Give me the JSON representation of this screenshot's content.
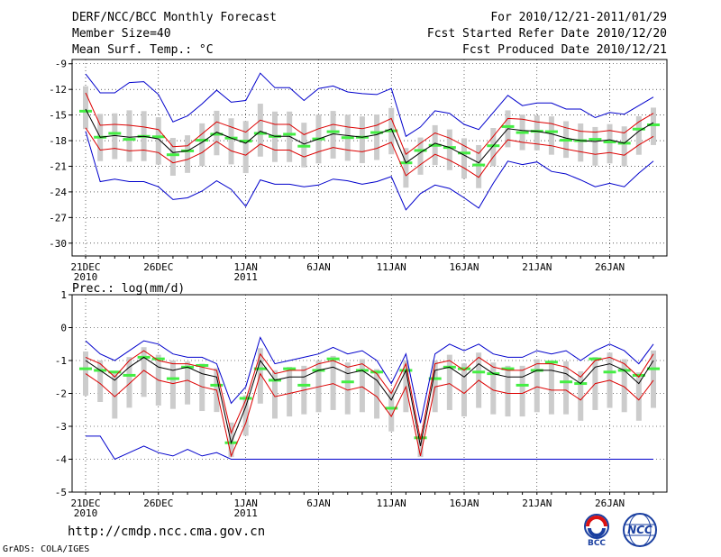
{
  "header": {
    "title": "DERF/NCC/BCC Monthly Forecast",
    "member": "Member Size=40",
    "variable": "Mean Surf. Temp.: °C",
    "period": "For 2010/12/21-2011/01/29",
    "started": "Fcst Started Refer Date 2010/12/20",
    "produced": "Fcst Produced Date 2010/12/21"
  },
  "footer": {
    "url": "http://cmdp.ncc.cma.gov.cn",
    "grads": "GrADS: COLA/IGES",
    "logo_left": "BCC",
    "logo_right": "NCC"
  },
  "chart_data": [
    {
      "type": "line",
      "title": "Mean Surf. Temp.: °C",
      "ylim": [
        -31.5,
        -8.5
      ],
      "yticks": [
        -9,
        -12,
        -15,
        -18,
        -21,
        -24,
        -27,
        -30
      ],
      "ytick_labels": [
        "-9",
        "-12",
        "-15",
        "-18",
        "-21",
        "-24",
        "-27",
        "-30"
      ],
      "xticks": [
        {
          "day": 1,
          "label": "21DEC",
          "sub": "2010"
        },
        {
          "day": 6,
          "label": "26DEC",
          "sub": ""
        },
        {
          "day": 12,
          "label": "1JAN",
          "sub": "2011"
        },
        {
          "day": 17,
          "label": "6JAN",
          "sub": ""
        },
        {
          "day": 22,
          "label": "11JAN",
          "sub": ""
        },
        {
          "day": 27,
          "label": "16JAN",
          "sub": ""
        },
        {
          "day": 32,
          "label": "21JAN",
          "sub": ""
        },
        {
          "day": 37,
          "label": "26JAN",
          "sub": ""
        }
      ],
      "days": 40,
      "series": [
        {
          "name": "max",
          "color": "#0000cc",
          "values": [
            -10.2,
            -12.4,
            -12.4,
            -11.2,
            -11.1,
            -12.6,
            -15.8,
            -15.1,
            -13.7,
            -12.1,
            -13.5,
            -13.3,
            -10.1,
            -11.8,
            -11.8,
            -13.3,
            -11.9,
            -11.6,
            -12.3,
            -12.5,
            -12.6,
            -11.9,
            -17.5,
            -16.4,
            -14.5,
            -14.8,
            -16.1,
            -16.7,
            -14.7,
            -12.7,
            -13.9,
            -13.6,
            -13.6,
            -14.3,
            -14.3,
            -15.3,
            -14.7,
            -14.9,
            -13.9,
            -12.9
          ]
        },
        {
          "name": "upper",
          "color": "#dd0000",
          "values": [
            -12.4,
            -16.2,
            -16.1,
            -16.2,
            -16.4,
            -16.7,
            -18.7,
            -18.6,
            -17.2,
            -15.8,
            -16.4,
            -17.0,
            -15.6,
            -16.1,
            -16.1,
            -17.3,
            -16.6,
            -16.1,
            -16.4,
            -16.6,
            -16.2,
            -15.4,
            -19.6,
            -18.3,
            -17.1,
            -17.7,
            -18.6,
            -19.5,
            -17.5,
            -15.4,
            -15.5,
            -15.8,
            -16.0,
            -16.5,
            -16.9,
            -17.0,
            -16.8,
            -17.1,
            -15.8,
            -14.8
          ]
        },
        {
          "name": "mean",
          "color": "#000000",
          "values": [
            -14.3,
            -17.6,
            -17.4,
            -17.6,
            -17.5,
            -17.8,
            -19.4,
            -19.2,
            -18.2,
            -17.0,
            -17.7,
            -18.3,
            -16.9,
            -17.5,
            -17.5,
            -18.4,
            -17.8,
            -17.2,
            -17.4,
            -17.6,
            -17.3,
            -16.6,
            -20.6,
            -19.4,
            -18.3,
            -18.8,
            -19.7,
            -20.6,
            -18.6,
            -16.6,
            -16.8,
            -16.9,
            -17.2,
            -17.7,
            -18.0,
            -18.1,
            -17.9,
            -18.3,
            -16.9,
            -15.9
          ]
        },
        {
          "name": "lower",
          "color": "#dd0000",
          "values": [
            -16.5,
            -19.1,
            -18.9,
            -19.2,
            -19.1,
            -19.4,
            -20.6,
            -20.2,
            -19.4,
            -18.1,
            -19.2,
            -19.7,
            -18.4,
            -19.1,
            -19.1,
            -19.9,
            -19.3,
            -18.8,
            -19.1,
            -19.3,
            -18.9,
            -18.2,
            -22.1,
            -20.8,
            -19.6,
            -20.3,
            -21.2,
            -22.3,
            -19.9,
            -17.9,
            -18.2,
            -18.4,
            -18.6,
            -19.0,
            -19.3,
            -19.6,
            -19.4,
            -19.7,
            -18.5,
            -17.5
          ]
        },
        {
          "name": "min",
          "color": "#0000cc",
          "values": [
            -16.9,
            -22.8,
            -22.5,
            -22.8,
            -22.8,
            -23.4,
            -24.9,
            -24.7,
            -23.9,
            -22.7,
            -23.7,
            -25.7,
            -22.6,
            -23.1,
            -23.1,
            -23.4,
            -23.2,
            -22.5,
            -22.7,
            -23.1,
            -22.8,
            -22.2,
            -26.1,
            -24.2,
            -23.2,
            -23.6,
            -24.7,
            -25.9,
            -23.0,
            -20.4,
            -20.8,
            -20.5,
            -21.6,
            -21.9,
            -22.6,
            -23.4,
            -23.0,
            -23.4,
            -21.8,
            -20.4
          ]
        }
      ]
    },
    {
      "type": "line",
      "title": "Prec.: log(mm/d)",
      "ylim": [
        -5,
        1
      ],
      "yticks": [
        1,
        0,
        -1,
        -2,
        -3,
        -4,
        -5
      ],
      "ytick_labels": [
        "1",
        "0",
        "-1",
        "-2",
        "-3",
        "-4",
        "-5"
      ],
      "xticks": [
        {
          "day": 1,
          "label": "21DEC",
          "sub": "2010"
        },
        {
          "day": 6,
          "label": "26DEC",
          "sub": ""
        },
        {
          "day": 12,
          "label": "1JAN",
          "sub": "2011"
        },
        {
          "day": 17,
          "label": "6JAN",
          "sub": ""
        },
        {
          "day": 22,
          "label": "11JAN",
          "sub": ""
        },
        {
          "day": 27,
          "label": "16JAN",
          "sub": ""
        },
        {
          "day": 32,
          "label": "21JAN",
          "sub": ""
        },
        {
          "day": 37,
          "label": "26JAN",
          "sub": ""
        }
      ],
      "days": 40,
      "series": [
        {
          "name": "max",
          "color": "#0000cc",
          "values": [
            -0.4,
            -0.8,
            -1.0,
            -0.7,
            -0.4,
            -0.5,
            -0.8,
            -0.9,
            -0.9,
            -1.1,
            -2.3,
            -1.8,
            -0.3,
            -1.1,
            -1.0,
            -0.9,
            -0.8,
            -0.6,
            -0.8,
            -0.7,
            -1.0,
            -1.7,
            -0.8,
            -2.9,
            -0.8,
            -0.5,
            -0.7,
            -0.5,
            -0.8,
            -0.9,
            -0.9,
            -0.7,
            -0.8,
            -0.7,
            -1.0,
            -0.7,
            -0.5,
            -0.7,
            -1.1,
            -0.5
          ]
        },
        {
          "name": "upper",
          "color": "#dd0000",
          "values": [
            -0.9,
            -1.1,
            -1.5,
            -1.0,
            -0.7,
            -1.0,
            -1.1,
            -1.1,
            -1.2,
            -1.3,
            -3.2,
            -2.2,
            -0.8,
            -1.4,
            -1.3,
            -1.3,
            -1.1,
            -1.0,
            -1.2,
            -1.1,
            -1.4,
            -2.0,
            -1.1,
            -3.4,
            -1.1,
            -1.0,
            -1.3,
            -0.9,
            -1.2,
            -1.3,
            -1.3,
            -1.1,
            -1.1,
            -1.2,
            -1.5,
            -1.0,
            -0.9,
            -1.1,
            -1.5,
            -0.8
          ]
        },
        {
          "name": "mean",
          "color": "#000000",
          "values": [
            -1.0,
            -1.3,
            -1.6,
            -1.2,
            -0.9,
            -1.2,
            -1.3,
            -1.2,
            -1.4,
            -1.5,
            -3.5,
            -2.4,
            -1.0,
            -1.6,
            -1.5,
            -1.5,
            -1.3,
            -1.2,
            -1.4,
            -1.3,
            -1.6,
            -2.2,
            -1.3,
            -3.6,
            -1.3,
            -1.2,
            -1.5,
            -1.1,
            -1.4,
            -1.5,
            -1.5,
            -1.3,
            -1.3,
            -1.4,
            -1.7,
            -1.2,
            -1.1,
            -1.3,
            -1.7,
            -1.0
          ]
        },
        {
          "name": "lower",
          "color": "#dd0000",
          "values": [
            -1.4,
            -1.7,
            -2.1,
            -1.7,
            -1.3,
            -1.6,
            -1.7,
            -1.6,
            -1.8,
            -1.9,
            -3.9,
            -2.9,
            -1.4,
            -2.1,
            -2.0,
            -1.9,
            -1.8,
            -1.7,
            -1.9,
            -1.8,
            -2.1,
            -2.7,
            -1.8,
            -3.9,
            -1.8,
            -1.7,
            -2.0,
            -1.6,
            -1.9,
            -2.0,
            -2.0,
            -1.8,
            -1.9,
            -1.9,
            -2.2,
            -1.7,
            -1.6,
            -1.8,
            -2.2,
            -1.6
          ]
        },
        {
          "name": "min",
          "color": "#0000cc",
          "values": [
            -3.3,
            -3.3,
            -4.0,
            -3.8,
            -3.6,
            -3.8,
            -3.9,
            -3.7,
            -3.9,
            -3.8,
            -4.0,
            -4.0,
            -4.0,
            -4.0,
            -4.0,
            -4.0,
            -4.0,
            -4.0,
            -4.0,
            -4.0,
            -4.0,
            -4.0,
            -4.0,
            -4.0,
            -4.0,
            -4.0,
            -4.0,
            -4.0,
            -4.0,
            -4.0,
            -4.0,
            -4.0,
            -4.0,
            -4.0,
            -4.0,
            -4.0,
            -4.0,
            -4.0,
            -4.0,
            -4.0
          ]
        }
      ]
    }
  ]
}
